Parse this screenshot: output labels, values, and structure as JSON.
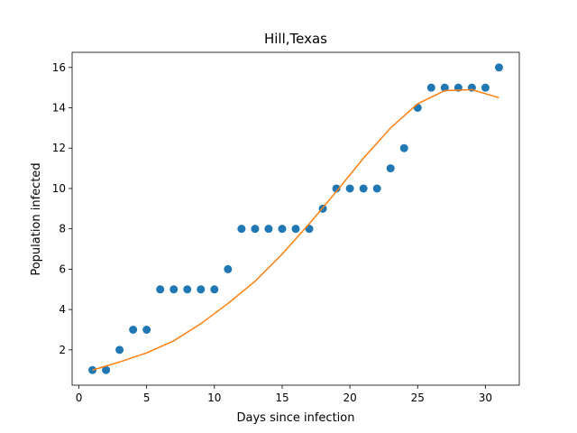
{
  "chart_data": {
    "type": "scatter",
    "title": "Hill,Texas",
    "xlabel": "Days since infection",
    "ylabel": "Population infected",
    "xlim": [
      -0.5,
      32.5
    ],
    "ylim": [
      0.25,
      16.75
    ],
    "xticks": [
      0,
      5,
      10,
      15,
      20,
      25,
      30
    ],
    "yticks": [
      2,
      4,
      6,
      8,
      10,
      12,
      14,
      16
    ],
    "grid": false,
    "series": [
      {
        "kind": "scatter",
        "color": "#1f77b4",
        "x": [
          1,
          2,
          3,
          4,
          5,
          6,
          7,
          8,
          9,
          10,
          11,
          12,
          13,
          14,
          15,
          16,
          17,
          18,
          19,
          20,
          21,
          22,
          23,
          24,
          25,
          26,
          27,
          28,
          29,
          30,
          31
        ],
        "y": [
          1,
          1,
          2,
          3,
          3,
          5,
          5,
          5,
          5,
          5,
          6,
          8,
          8,
          8,
          8,
          8,
          8,
          9,
          10,
          10,
          10,
          10,
          11,
          12,
          14,
          15,
          15,
          15,
          15,
          15,
          16
        ]
      },
      {
        "kind": "line",
        "color": "#ff7f0e",
        "x": [
          1,
          3,
          5,
          7,
          9,
          11,
          13,
          15,
          17,
          19,
          21,
          23,
          25,
          27,
          29,
          31
        ],
        "y": [
          1.0,
          1.4,
          1.85,
          2.45,
          3.3,
          4.3,
          5.4,
          6.75,
          8.25,
          9.85,
          11.5,
          13.0,
          14.2,
          14.85,
          14.9,
          14.5
        ]
      }
    ]
  }
}
